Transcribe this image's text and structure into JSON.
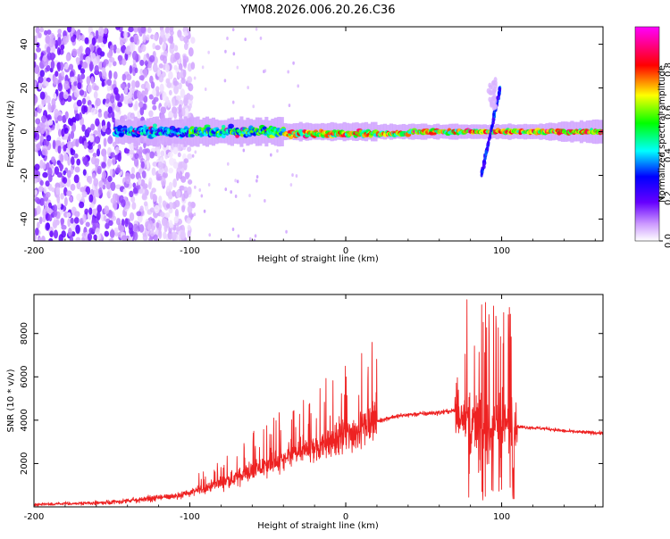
{
  "title": "YM08.2026.006.20.26.C36",
  "chart_data": [
    {
      "type": "heatmap",
      "name": "spectrogram",
      "xlabel": "Height of straight line (km)",
      "ylabel": "Frequency (Hz)",
      "xlim": [
        -200,
        165
      ],
      "ylim": [
        -50,
        48
      ],
      "x_ticks": [
        -200,
        -100,
        0,
        100
      ],
      "x_tick_labels": [
        "-200",
        "-100",
        "0",
        "100"
      ],
      "y_ticks": [
        -40,
        -20,
        0,
        20,
        40
      ],
      "y_tick_labels": [
        "-40",
        "-20",
        "0",
        "20",
        "40"
      ],
      "colorbar": {
        "label": "Normalized spectral amplitude",
        "range": [
          0,
          1
        ],
        "ticks": [
          0.0,
          0.2,
          0.4,
          0.6,
          0.8
        ],
        "tick_labels": [
          "0.0",
          "0.2",
          "0.4",
          "0.6",
          "0.8"
        ],
        "stops": [
          {
            "v": 0.0,
            "color": "#ffffff"
          },
          {
            "v": 0.08,
            "color": "#cc99ff"
          },
          {
            "v": 0.18,
            "color": "#6600ff"
          },
          {
            "v": 0.3,
            "color": "#0000ff"
          },
          {
            "v": 0.42,
            "color": "#00ffff"
          },
          {
            "v": 0.55,
            "color": "#00ff00"
          },
          {
            "v": 0.68,
            "color": "#ffff00"
          },
          {
            "v": 0.82,
            "color": "#ff0000"
          },
          {
            "v": 1.0,
            "color": "#ff00ff"
          }
        ]
      },
      "features": {
        "noise_region_km": [
          -200,
          -100
        ],
        "band_start_km": -148,
        "band_center_hz": 0,
        "spike_km": 93
      }
    },
    {
      "type": "line",
      "name": "snr",
      "xlabel": "Height of straight line (km)",
      "ylabel": "SNR (10 * v/v)",
      "xlim": [
        -200,
        165
      ],
      "ylim": [
        0,
        9800
      ],
      "x_ticks": [
        -200,
        -100,
        0,
        100
      ],
      "x_tick_labels": [
        "-200",
        "-100",
        "0",
        "100"
      ],
      "y_ticks": [
        2000,
        4000,
        6000,
        8000
      ],
      "y_tick_labels": [
        "2000",
        "4000",
        "6000",
        "8000"
      ],
      "color": "#ee2222",
      "envelope": {
        "x": [
          -200,
          -150,
          -130,
          -110,
          -100,
          -90,
          -80,
          -70,
          -60,
          -50,
          -40,
          -30,
          -20,
          -10,
          0,
          10,
          20,
          30,
          40,
          50,
          60,
          65,
          70,
          75,
          80,
          85,
          90,
          95,
          100,
          105,
          110,
          120,
          130,
          140,
          150,
          165
        ],
        "y": [
          100,
          200,
          350,
          500,
          650,
          850,
          1100,
          1350,
          1650,
          1900,
          2150,
          2450,
          2700,
          3000,
          3250,
          3600,
          3950,
          4150,
          4250,
          4300,
          4350,
          4400,
          4450,
          4300,
          4000,
          3700,
          3500,
          3700,
          4000,
          3800,
          3700,
          3650,
          3600,
          3500,
          3450,
          3400
        ]
      }
    }
  ]
}
